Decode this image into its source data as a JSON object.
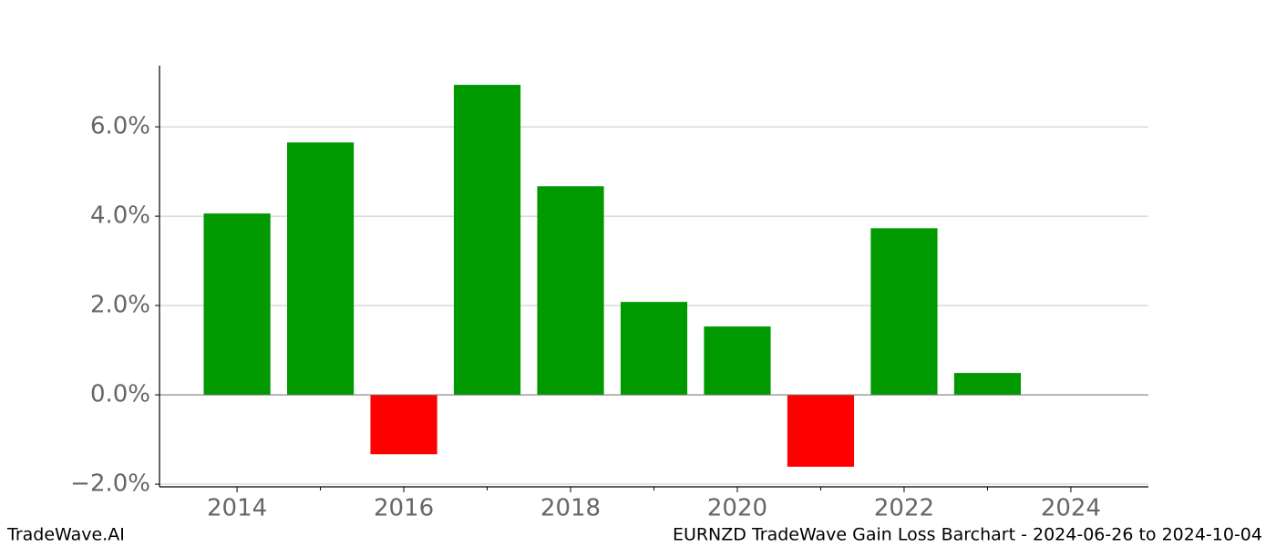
{
  "chart_data": {
    "type": "bar",
    "title": "EURNZD TradeWave Gain Loss Barchart - 2024-06-26 to 2024-10-04",
    "source": "TradeWave.AI",
    "x": [
      2014,
      2015,
      2016,
      2017,
      2018,
      2019,
      2020,
      2021,
      2022,
      2023
    ],
    "values": [
      4.06,
      5.65,
      -1.33,
      6.94,
      4.67,
      2.08,
      1.53,
      -1.61,
      3.73,
      0.49
    ],
    "positive_color": "#009900",
    "negative_color": "#ff0000",
    "xlim": [
      2013.07,
      2024.93
    ],
    "xticks": [
      2014,
      2016,
      2018,
      2020,
      2022,
      2024
    ],
    "xminorticks": [
      2015,
      2017,
      2019,
      2021,
      2023
    ],
    "ylim": [
      -2.06,
      7.37
    ],
    "yticks": [
      {
        "value": -2,
        "label": "−2.0%"
      },
      {
        "value": 0,
        "label": "0.0%"
      },
      {
        "value": 2,
        "label": "2.0%"
      },
      {
        "value": 4,
        "label": "4.0%"
      },
      {
        "value": 6,
        "label": "6.0%"
      }
    ],
    "grid": true
  }
}
